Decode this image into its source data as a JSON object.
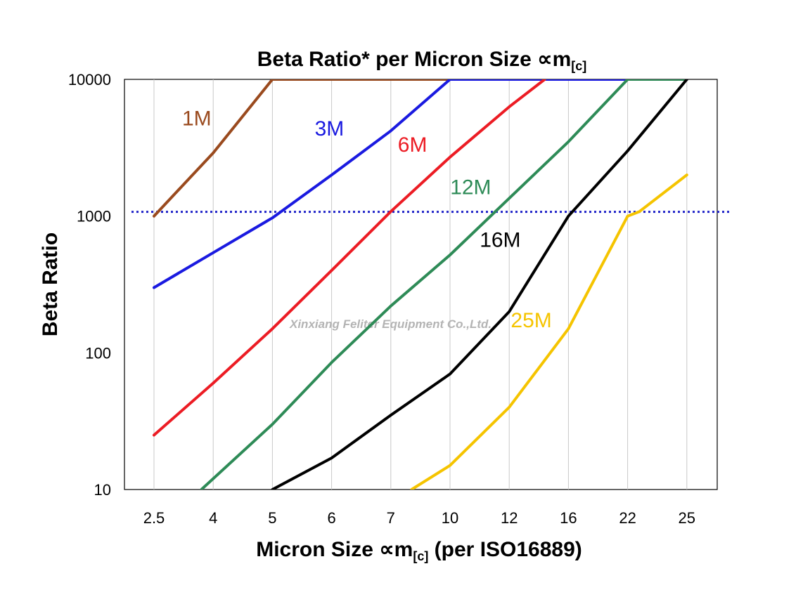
{
  "chart_data": {
    "type": "line",
    "title": "Beta Ratio* per Micron Size ∝m",
    "title_sub": "[c]",
    "xlabel": "Micron Size ∝m",
    "xlabel_sub": "[c]",
    "xlabel_suffix": " (per ISO16889)",
    "ylabel": "Beta Ratio",
    "x_scale": "categorical",
    "y_scale": "log",
    "ylim": [
      10,
      10000
    ],
    "categories": [
      "2.5",
      "4",
      "5",
      "6",
      "7",
      "10",
      "12",
      "16",
      "22",
      "25"
    ],
    "y_ticks": [
      "10",
      "100",
      "1000",
      "10000"
    ],
    "grid": "vertical",
    "reference_line": {
      "value": 1000,
      "style": "dotted",
      "color": "#1f22c8"
    },
    "watermark": "Xinxiang Feliter Equipment Co.,Ltd.",
    "series": [
      {
        "name": "1M",
        "color": "#9a4a1e",
        "points": [
          [
            0,
            1000
          ],
          [
            1,
            2900
          ],
          [
            2,
            10000
          ],
          [
            9,
            10000
          ]
        ]
      },
      {
        "name": "3M",
        "color": "#1a1ae0",
        "points": [
          [
            0,
            300
          ],
          [
            1,
            540
          ],
          [
            2,
            970
          ],
          [
            3,
            2000
          ],
          [
            4,
            4200
          ],
          [
            5,
            10000
          ],
          [
            9,
            10000
          ]
        ]
      },
      {
        "name": "6M",
        "color": "#ec1c24",
        "points": [
          [
            0,
            25
          ],
          [
            1,
            60
          ],
          [
            2,
            150
          ],
          [
            3,
            400
          ],
          [
            4,
            1080
          ],
          [
            5,
            2700
          ],
          [
            6,
            6300
          ],
          [
            6.6,
            10000
          ]
        ]
      },
      {
        "name": "12M",
        "color": "#2e8b57",
        "points": [
          [
            0.8,
            10
          ],
          [
            2,
            30
          ],
          [
            3,
            85
          ],
          [
            4,
            220
          ],
          [
            5,
            520
          ],
          [
            6,
            1350
          ],
          [
            7,
            3500
          ],
          [
            8,
            10000
          ],
          [
            9,
            10000
          ]
        ]
      },
      {
        "name": "16M",
        "color": "#000000",
        "points": [
          [
            2,
            10
          ],
          [
            3,
            17
          ],
          [
            4,
            35
          ],
          [
            5,
            70
          ],
          [
            6,
            200
          ],
          [
            7,
            1000
          ],
          [
            8,
            3000
          ],
          [
            9,
            10000
          ]
        ]
      },
      {
        "name": "25M",
        "color": "#f5c400",
        "points": [
          [
            4.35,
            10
          ],
          [
            5,
            15
          ],
          [
            6,
            40
          ],
          [
            7,
            150
          ],
          [
            8,
            1000
          ],
          [
            8.2,
            1080
          ],
          [
            9,
            2000
          ]
        ]
      }
    ]
  }
}
